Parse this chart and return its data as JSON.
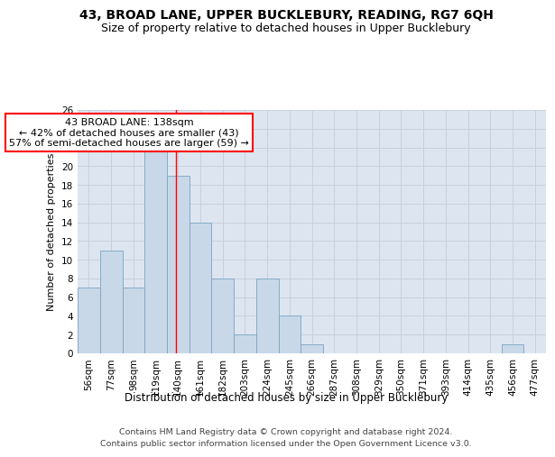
{
  "title1": "43, BROAD LANE, UPPER BUCKLEBURY, READING, RG7 6QH",
  "title2": "Size of property relative to detached houses in Upper Bucklebury",
  "xlabel": "Distribution of detached houses by size in Upper Bucklebury",
  "ylabel": "Number of detached properties",
  "footer1": "Contains HM Land Registry data © Crown copyright and database right 2024.",
  "footer2": "Contains public sector information licensed under the Open Government Licence v3.0.",
  "bar_labels": [
    "56sqm",
    "77sqm",
    "98sqm",
    "119sqm",
    "140sqm",
    "161sqm",
    "182sqm",
    "203sqm",
    "224sqm",
    "245sqm",
    "266sqm",
    "287sqm",
    "308sqm",
    "329sqm",
    "350sqm",
    "371sqm",
    "393sqm",
    "414sqm",
    "435sqm",
    "456sqm",
    "477sqm"
  ],
  "bar_values": [
    7,
    11,
    7,
    22,
    19,
    14,
    8,
    2,
    8,
    4,
    1,
    0,
    0,
    0,
    0,
    0,
    0,
    0,
    0,
    1,
    0
  ],
  "bar_color": "#c8d8e8",
  "bar_edge_color": "#7ba3c0",
  "grid_color": "#c8d0dc",
  "annotation_line1": "43 BROAD LANE: 138sqm",
  "annotation_line2": "← 42% of detached houses are smaller (43)",
  "annotation_line3": "57% of semi-detached houses are larger (59) →",
  "annotation_box_color": "white",
  "annotation_box_edge": "red",
  "vline_color": "red",
  "vline_pos": 3.9,
  "ylim": [
    0,
    26
  ],
  "yticks": [
    0,
    2,
    4,
    6,
    8,
    10,
    12,
    14,
    16,
    18,
    20,
    22,
    24,
    26
  ],
  "background_color": "#dde6f0",
  "title1_fontsize": 10,
  "title2_fontsize": 9,
  "xlabel_fontsize": 8.5,
  "ylabel_fontsize": 8,
  "tick_fontsize": 7.5,
  "footer_fontsize": 6.8,
  "annot_fontsize": 8
}
